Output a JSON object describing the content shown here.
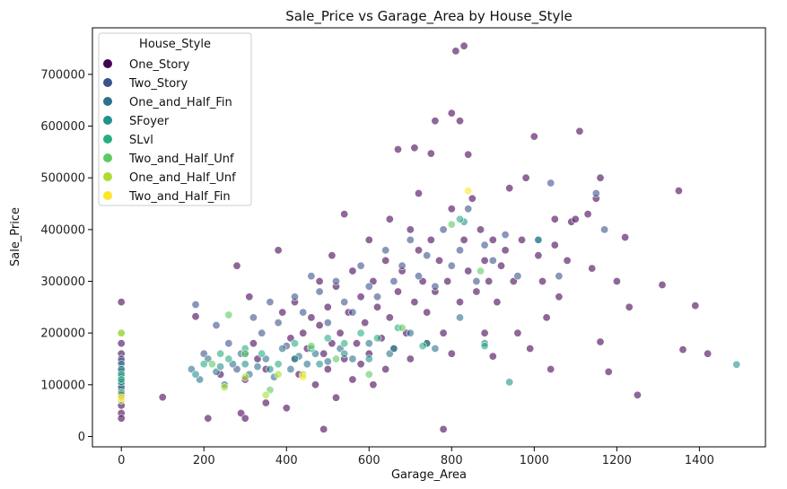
{
  "chart_data": {
    "type": "scatter",
    "title": "Sale_Price vs Garage_Area by House_Style",
    "xlabel": "Garage_Area",
    "ylabel": "Sale_Price",
    "xlim": [
      -70,
      1560
    ],
    "ylim": [
      -20000,
      790000
    ],
    "xticks": [
      "0",
      "200",
      "400",
      "600",
      "800",
      "1000",
      "1200",
      "1400"
    ],
    "yticks": [
      "0",
      "100000",
      "200000",
      "300000",
      "400000",
      "500000",
      "600000",
      "700000"
    ],
    "grid": false,
    "legend_title": "House_Style",
    "legend_position": "top-left",
    "series": [
      {
        "name": "One_Story",
        "color": "#440154",
        "points": [
          [
            0,
            260000
          ],
          [
            0,
            180000
          ],
          [
            0,
            160000
          ],
          [
            0,
            145000
          ],
          [
            0,
            130000
          ],
          [
            0,
            120000
          ],
          [
            0,
            110000
          ],
          [
            0,
            100000
          ],
          [
            0,
            90000
          ],
          [
            0,
            80000
          ],
          [
            0,
            60000
          ],
          [
            0,
            45000
          ],
          [
            0,
            35000
          ],
          [
            100,
            76000
          ],
          [
            180,
            232000
          ],
          [
            210,
            35000
          ],
          [
            240,
            120000
          ],
          [
            280,
            330000
          ],
          [
            290,
            45000
          ],
          [
            300,
            35000
          ],
          [
            300,
            110000
          ],
          [
            310,
            270000
          ],
          [
            320,
            180000
          ],
          [
            330,
            150000
          ],
          [
            350,
            130000
          ],
          [
            350,
            65000
          ],
          [
            380,
            360000
          ],
          [
            390,
            240000
          ],
          [
            400,
            55000
          ],
          [
            410,
            190000
          ],
          [
            420,
            150000
          ],
          [
            420,
            260000
          ],
          [
            430,
            120000
          ],
          [
            440,
            200000
          ],
          [
            450,
            170000
          ],
          [
            460,
            230000
          ],
          [
            470,
            100000
          ],
          [
            480,
            300000
          ],
          [
            480,
            215000
          ],
          [
            490,
            14000
          ],
          [
            490,
            160000
          ],
          [
            500,
            130000
          ],
          [
            500,
            250000
          ],
          [
            510,
            180000
          ],
          [
            510,
            350000
          ],
          [
            520,
            290000
          ],
          [
            520,
            75000
          ],
          [
            530,
            200000
          ],
          [
            540,
            430000
          ],
          [
            540,
            150000
          ],
          [
            550,
            240000
          ],
          [
            560,
            110000
          ],
          [
            560,
            320000
          ],
          [
            570,
            180000
          ],
          [
            580,
            270000
          ],
          [
            580,
            140000
          ],
          [
            590,
            220000
          ],
          [
            600,
            380000
          ],
          [
            600,
            160000
          ],
          [
            610,
            300000
          ],
          [
            610,
            100000
          ],
          [
            620,
            250000
          ],
          [
            630,
            190000
          ],
          [
            640,
            340000
          ],
          [
            640,
            130000
          ],
          [
            650,
            420000
          ],
          [
            650,
            230000
          ],
          [
            660,
            170000
          ],
          [
            670,
            555000
          ],
          [
            670,
            280000
          ],
          [
            680,
            320000
          ],
          [
            690,
            200000
          ],
          [
            700,
            400000
          ],
          [
            700,
            150000
          ],
          [
            710,
            260000
          ],
          [
            710,
            558000
          ],
          [
            720,
            360000
          ],
          [
            720,
            470000
          ],
          [
            730,
            300000
          ],
          [
            740,
            240000
          ],
          [
            740,
            180000
          ],
          [
            750,
            380000
          ],
          [
            750,
            547000
          ],
          [
            760,
            610000
          ],
          [
            760,
            280000
          ],
          [
            770,
            340000
          ],
          [
            780,
            14000
          ],
          [
            780,
            200000
          ],
          [
            790,
            300000
          ],
          [
            800,
            625000
          ],
          [
            800,
            440000
          ],
          [
            800,
            160000
          ],
          [
            810,
            745000
          ],
          [
            820,
            610000
          ],
          [
            820,
            260000
          ],
          [
            830,
            755000
          ],
          [
            830,
            380000
          ],
          [
            840,
            320000
          ],
          [
            840,
            545000
          ],
          [
            850,
            460000
          ],
          [
            860,
            280000
          ],
          [
            870,
            400000
          ],
          [
            880,
            340000
          ],
          [
            880,
            200000
          ],
          [
            890,
            300000
          ],
          [
            900,
            380000
          ],
          [
            900,
            155000
          ],
          [
            910,
            260000
          ],
          [
            920,
            330000
          ],
          [
            930,
            360000
          ],
          [
            940,
            480000
          ],
          [
            950,
            300000
          ],
          [
            960,
            200000
          ],
          [
            970,
            380000
          ],
          [
            980,
            500000
          ],
          [
            990,
            170000
          ],
          [
            1000,
            580000
          ],
          [
            1010,
            350000
          ],
          [
            1020,
            300000
          ],
          [
            1030,
            230000
          ],
          [
            1040,
            130000
          ],
          [
            1050,
            420000
          ],
          [
            1050,
            370000
          ],
          [
            1060,
            270000
          ],
          [
            1080,
            340000
          ],
          [
            1090,
            415000
          ],
          [
            1100,
            420000
          ],
          [
            1110,
            590000
          ],
          [
            1130,
            430000
          ],
          [
            1140,
            325000
          ],
          [
            1150,
            460000
          ],
          [
            1160,
            500000
          ],
          [
            1160,
            183000
          ],
          [
            1180,
            125000
          ],
          [
            1200,
            300000
          ],
          [
            1220,
            385000
          ],
          [
            1230,
            250000
          ],
          [
            1250,
            80000
          ],
          [
            1310,
            293000
          ],
          [
            1350,
            475000
          ],
          [
            1360,
            168000
          ],
          [
            1390,
            253000
          ],
          [
            1420,
            160000
          ]
        ]
      },
      {
        "name": "Two_Story",
        "color": "#3b528b",
        "points": [
          [
            0,
            150000
          ],
          [
            0,
            125000
          ],
          [
            0,
            100000
          ],
          [
            180,
            255000
          ],
          [
            200,
            160000
          ],
          [
            230,
            215000
          ],
          [
            260,
            180000
          ],
          [
            280,
            130000
          ],
          [
            300,
            160000
          ],
          [
            320,
            230000
          ],
          [
            340,
            200000
          ],
          [
            360,
            260000
          ],
          [
            380,
            220000
          ],
          [
            400,
            175000
          ],
          [
            420,
            270000
          ],
          [
            440,
            240000
          ],
          [
            460,
            310000
          ],
          [
            480,
            280000
          ],
          [
            500,
            220000
          ],
          [
            520,
            300000
          ],
          [
            540,
            260000
          ],
          [
            560,
            240000
          ],
          [
            580,
            330000
          ],
          [
            600,
            290000
          ],
          [
            620,
            270000
          ],
          [
            640,
            360000
          ],
          [
            660,
            300000
          ],
          [
            680,
            330000
          ],
          [
            700,
            380000
          ],
          [
            720,
            310000
          ],
          [
            740,
            350000
          ],
          [
            760,
            290000
          ],
          [
            780,
            400000
          ],
          [
            800,
            330000
          ],
          [
            820,
            360000
          ],
          [
            840,
            440000
          ],
          [
            860,
            300000
          ],
          [
            880,
            370000
          ],
          [
            900,
            340000
          ],
          [
            930,
            390000
          ],
          [
            960,
            310000
          ],
          [
            1010,
            380000
          ],
          [
            1040,
            490000
          ],
          [
            1060,
            310000
          ],
          [
            1150,
            470000
          ],
          [
            1170,
            400000
          ]
        ]
      },
      {
        "name": "One_and_Half_Fin",
        "color": "#2c728e",
        "points": [
          [
            0,
            140000
          ],
          [
            0,
            115000
          ],
          [
            0,
            95000
          ],
          [
            170,
            130000
          ],
          [
            190,
            110000
          ],
          [
            210,
            150000
          ],
          [
            230,
            125000
          ],
          [
            250,
            100000
          ],
          [
            270,
            140000
          ],
          [
            290,
            160000
          ],
          [
            310,
            120000
          ],
          [
            330,
            135000
          ],
          [
            350,
            150000
          ],
          [
            370,
            115000
          ],
          [
            390,
            170000
          ],
          [
            410,
            130000
          ],
          [
            430,
            155000
          ],
          [
            450,
            140000
          ],
          [
            470,
            160000
          ],
          [
            500,
            145000
          ],
          [
            530,
            170000
          ],
          [
            560,
            150000
          ],
          [
            600,
            180000
          ],
          [
            650,
            160000
          ],
          [
            700,
            200000
          ],
          [
            760,
            170000
          ],
          [
            820,
            230000
          ],
          [
            880,
            180000
          ]
        ]
      },
      {
        "name": "SFoyer",
        "color": "#21918c",
        "points": [
          [
            0,
            130000
          ],
          [
            0,
            105000
          ],
          [
            180,
            120000
          ],
          [
            240,
            135000
          ],
          [
            300,
            140000
          ],
          [
            360,
            130000
          ],
          [
            420,
            150000
          ],
          [
            480,
            140000
          ],
          [
            540,
            160000
          ],
          [
            600,
            150000
          ],
          [
            660,
            170000
          ],
          [
            740,
            180000
          ],
          [
            830,
            415000
          ],
          [
            940,
            105000
          ],
          [
            1010,
            380000
          ],
          [
            1490,
            139000
          ]
        ]
      },
      {
        "name": "SLvl",
        "color": "#28ae80",
        "points": [
          [
            0,
            120000
          ],
          [
            0,
            110000
          ],
          [
            200,
            140000
          ],
          [
            240,
            160000
          ],
          [
            260,
            150000
          ],
          [
            300,
            170000
          ],
          [
            340,
            160000
          ],
          [
            380,
            140000
          ],
          [
            420,
            180000
          ],
          [
            460,
            170000
          ],
          [
            500,
            190000
          ],
          [
            540,
            180000
          ],
          [
            580,
            200000
          ],
          [
            620,
            190000
          ],
          [
            670,
            210000
          ],
          [
            730,
            175000
          ],
          [
            820,
            420000
          ],
          [
            880,
            175000
          ]
        ]
      },
      {
        "name": "Two_and_Half_Unf",
        "color": "#5ec962",
        "points": [
          [
            0,
            200000
          ],
          [
            0,
            85000
          ],
          [
            220,
            140000
          ],
          [
            260,
            235000
          ],
          [
            300,
            160000
          ],
          [
            360,
            90000
          ],
          [
            460,
            175000
          ],
          [
            520,
            150000
          ],
          [
            600,
            120000
          ],
          [
            680,
            210000
          ],
          [
            800,
            410000
          ],
          [
            870,
            320000
          ]
        ]
      },
      {
        "name": "One_and_Half_Unf",
        "color": "#addc30",
        "points": [
          [
            0,
            200000
          ],
          [
            0,
            70000
          ],
          [
            250,
            95000
          ],
          [
            300,
            115000
          ],
          [
            350,
            80000
          ],
          [
            380,
            120000
          ],
          [
            440,
            120000
          ]
        ]
      },
      {
        "name": "Two_and_Half_Fin",
        "color": "#fde725",
        "points": [
          [
            0,
            75000
          ],
          [
            440,
            115000
          ],
          [
            840,
            475000
          ]
        ]
      }
    ]
  }
}
